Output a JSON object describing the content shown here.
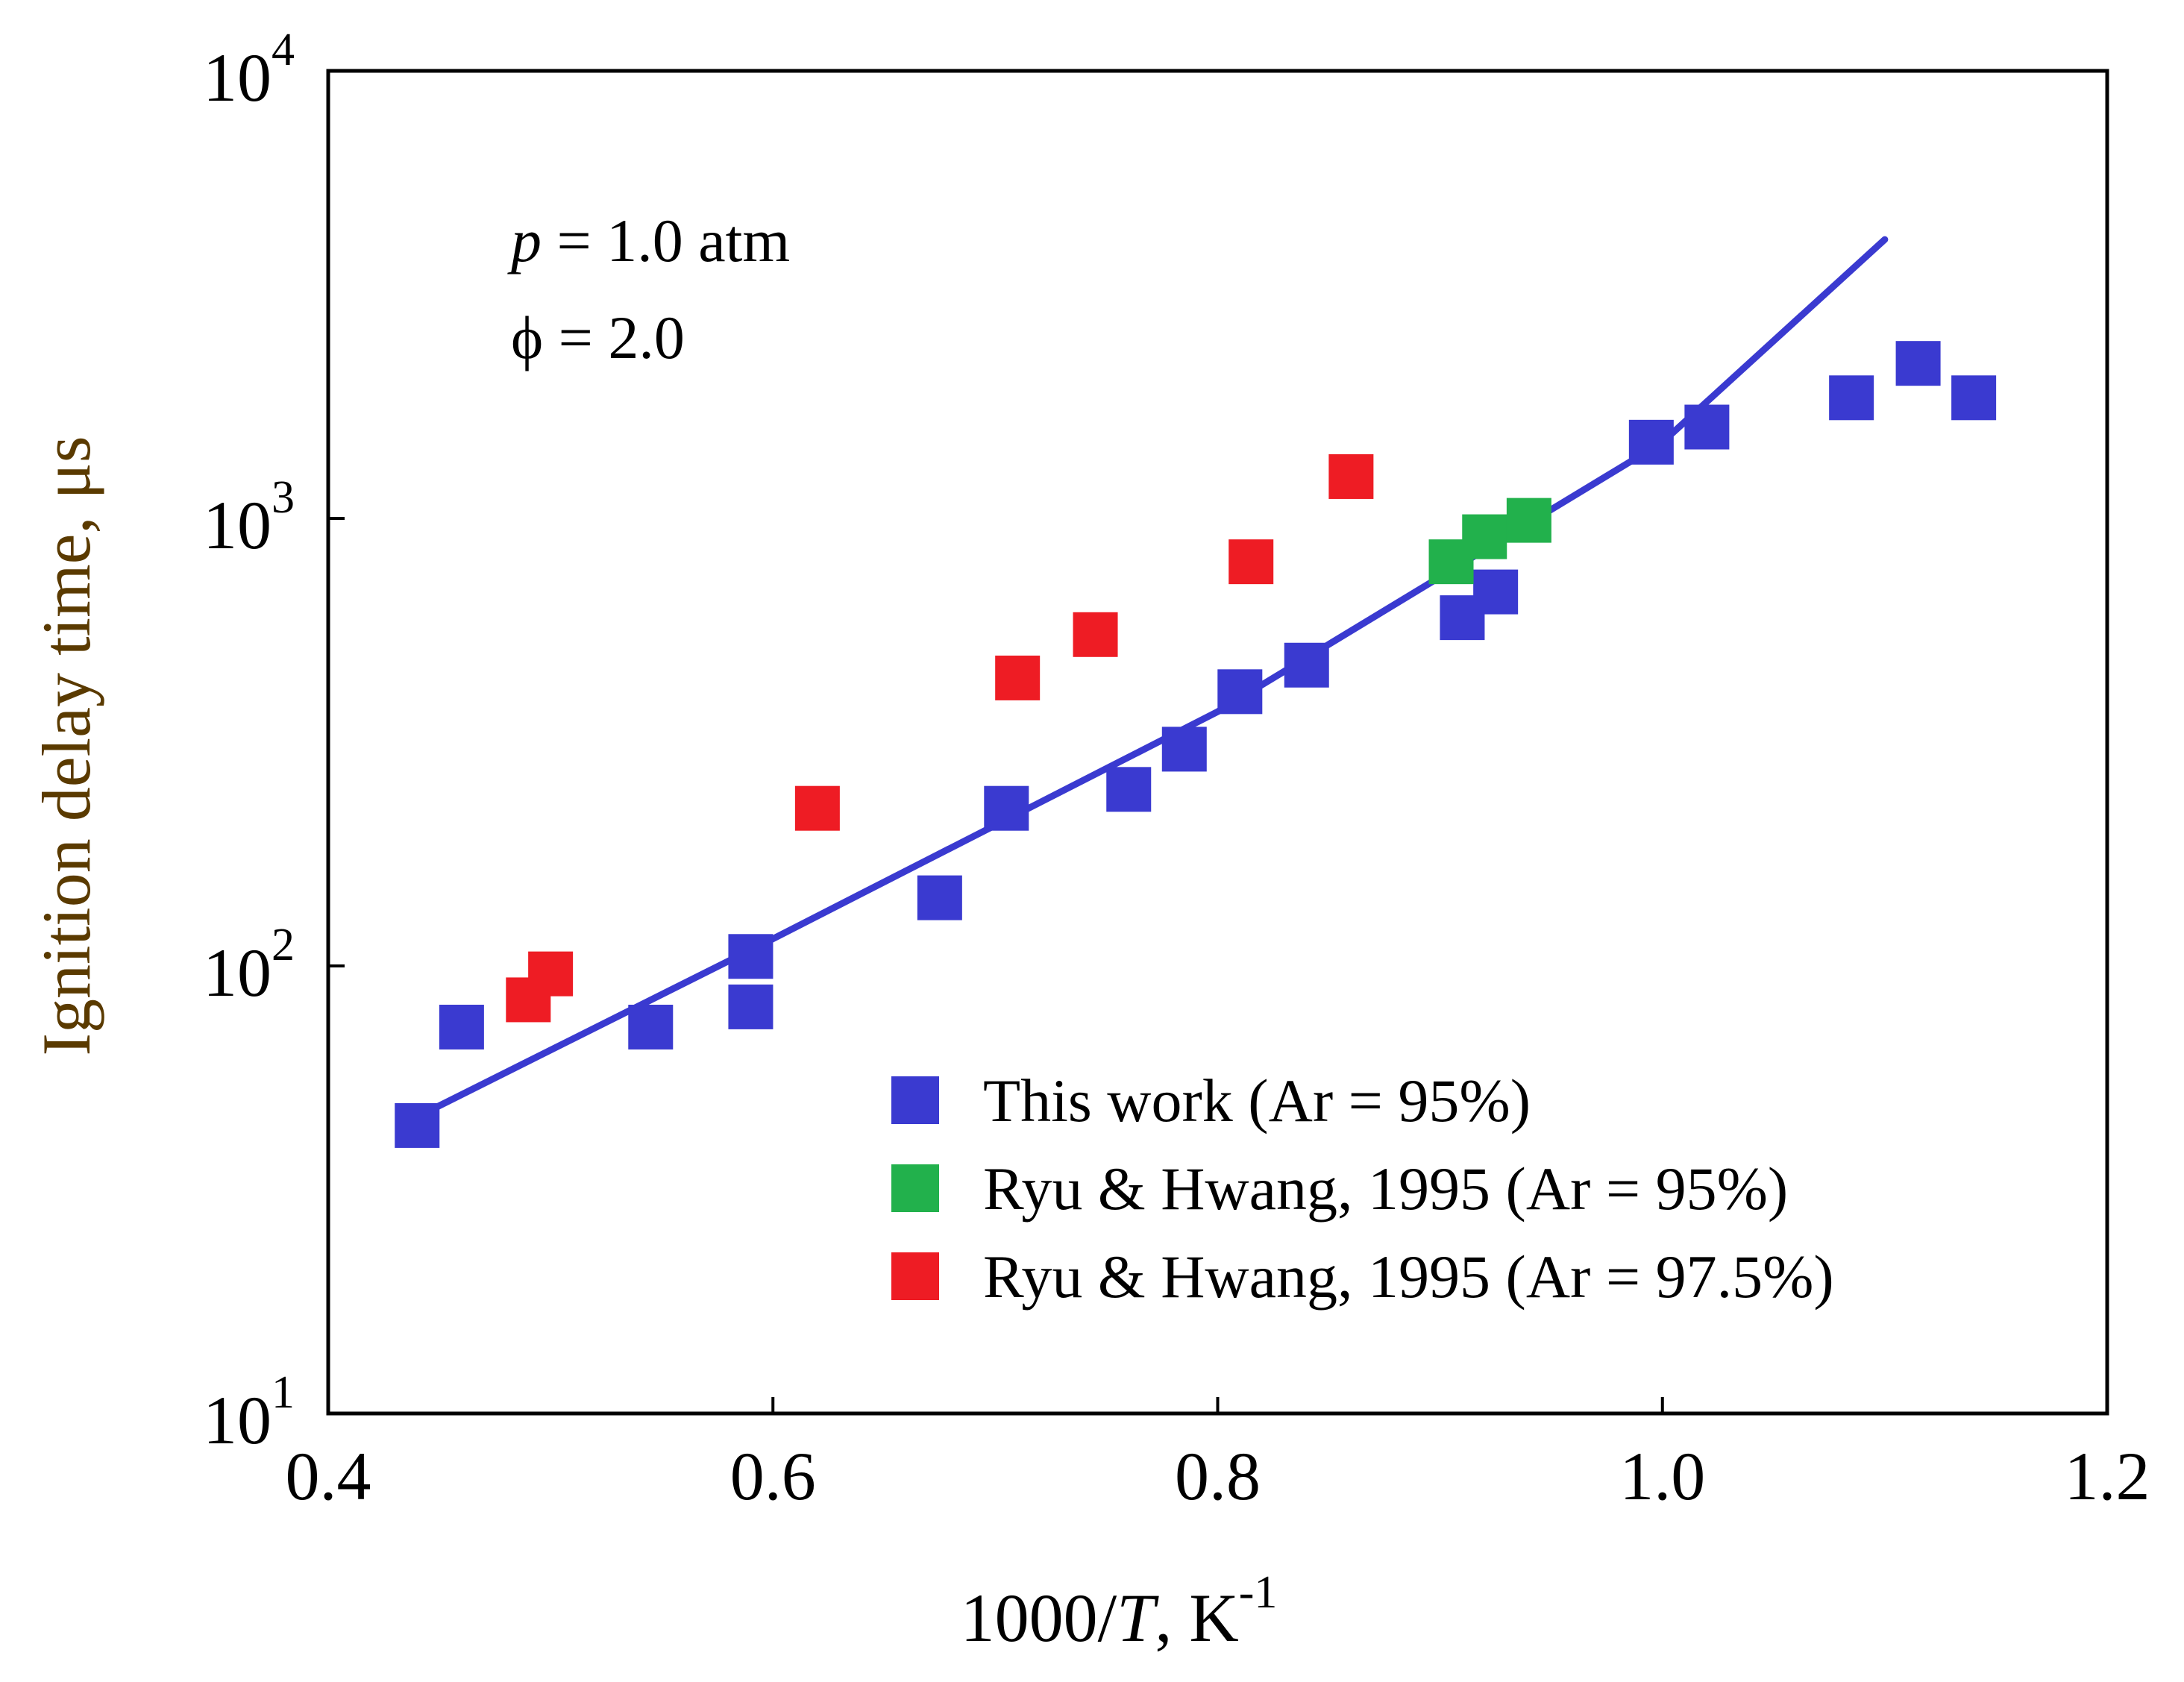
{
  "chart_data": {
    "type": "scatter",
    "title": "",
    "xlabel": "1000/T, K-1",
    "ylabel": "Ignition delay time, μs",
    "xlim": [
      0.4,
      1.2
    ],
    "ylim": [
      10,
      10000
    ],
    "yscale": "log",
    "grid": false,
    "legend_position": "bottom-right",
    "x_ticks": [
      {
        "value": 0.4,
        "label": "0.4"
      },
      {
        "value": 0.6,
        "label": "0.6"
      },
      {
        "value": 0.8,
        "label": "0.8"
      },
      {
        "value": 1.0,
        "label": "1.0"
      },
      {
        "value": 1.2,
        "label": "1.2"
      }
    ],
    "y_ticks": [
      {
        "value": 10,
        "base": "10",
        "exp": "1"
      },
      {
        "value": 100,
        "base": "10",
        "exp": "2"
      },
      {
        "value": 1000,
        "base": "10",
        "exp": "3"
      },
      {
        "value": 10000,
        "base": "10",
        "exp": "4"
      }
    ],
    "annotations": [
      {
        "id": "pressure",
        "var": "p",
        "rest": " = 1.0 atm"
      },
      {
        "id": "phi",
        "var": "ϕ",
        "rest": " = 2.0"
      }
    ],
    "series": [
      {
        "name": "This work (Ar = 95%)",
        "color": "#3a3ad0",
        "marker": "square",
        "points": [
          [
            0.44,
            44
          ],
          [
            0.46,
            73
          ],
          [
            0.545,
            73
          ],
          [
            0.59,
            105
          ],
          [
            0.59,
            81
          ],
          [
            0.675,
            142
          ],
          [
            0.705,
            225
          ],
          [
            0.76,
            248
          ],
          [
            0.785,
            305
          ],
          [
            0.81,
            410
          ],
          [
            0.84,
            470
          ],
          [
            0.91,
            600
          ],
          [
            0.925,
            685
          ],
          [
            0.995,
            1480
          ],
          [
            1.02,
            1600
          ],
          [
            1.085,
            1860
          ],
          [
            1.115,
            2220
          ],
          [
            1.14,
            1860
          ]
        ]
      },
      {
        "name": "Ryu & Hwang, 1995 (Ar = 95%)",
        "color": "#22b14c",
        "marker": "square",
        "points": [
          [
            0.905,
            800
          ],
          [
            0.92,
            910
          ],
          [
            0.94,
            990
          ]
        ]
      },
      {
        "name": "Ryu & Hwang, 1995 (Ar = 97.5%)",
        "color": "#ee1c24",
        "marker": "square",
        "points": [
          [
            0.49,
            84
          ],
          [
            0.5,
            96
          ],
          [
            0.62,
            225
          ],
          [
            0.71,
            440
          ],
          [
            0.745,
            550
          ],
          [
            0.815,
            800
          ],
          [
            0.86,
            1240
          ]
        ]
      }
    ],
    "fit_line": {
      "color": "#3a3ad0",
      "points": [
        [
          0.44,
          46
        ],
        [
          0.6,
          115
        ],
        [
          0.8,
          370
        ],
        [
          1.0,
          1480
        ],
        [
          1.1,
          4200
        ]
      ]
    }
  }
}
